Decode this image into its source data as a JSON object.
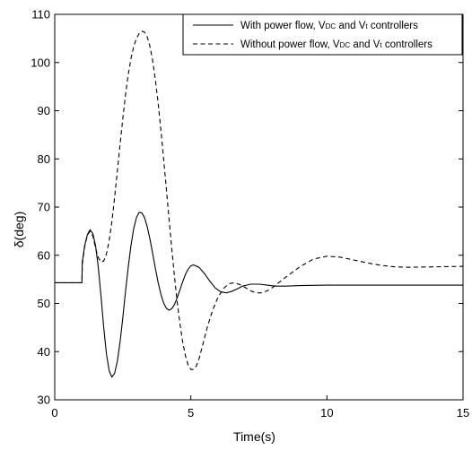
{
  "chart_data": {
    "type": "line",
    "xlabel": "Time(s)",
    "ylabel": "δ(deg)",
    "xlim": [
      0,
      15
    ],
    "ylim": [
      30,
      110
    ],
    "xticks": [
      0,
      5,
      10,
      15
    ],
    "yticks": [
      30,
      40,
      50,
      60,
      70,
      80,
      90,
      100,
      110
    ],
    "grid": false,
    "legend_position": "top-right",
    "series": [
      {
        "name": "With power flow, V_DC and V_t controllers",
        "legend": {
          "before": "With power flow, V",
          "sub1": "DC",
          "middle": " and V",
          "sub2": "t",
          "after": " controllers"
        },
        "line_style": "solid",
        "color": "#000000",
        "points": [
          [
            0,
            54.3
          ],
          [
            1.0,
            54.3
          ],
          [
            1.01,
            58.5
          ],
          [
            1.1,
            62.0
          ],
          [
            1.2,
            64.3
          ],
          [
            1.3,
            65.3
          ],
          [
            1.4,
            64.5
          ],
          [
            1.5,
            62.0
          ],
          [
            1.6,
            57.5
          ],
          [
            1.7,
            51.5
          ],
          [
            1.8,
            45.0
          ],
          [
            1.9,
            39.5
          ],
          [
            2.0,
            36.0
          ],
          [
            2.1,
            34.7
          ],
          [
            2.2,
            35.5
          ],
          [
            2.3,
            38.0
          ],
          [
            2.4,
            42.0
          ],
          [
            2.5,
            47.0
          ],
          [
            2.6,
            52.5
          ],
          [
            2.7,
            57.5
          ],
          [
            2.8,
            62.0
          ],
          [
            2.9,
            65.5
          ],
          [
            3.0,
            67.8
          ],
          [
            3.1,
            68.9
          ],
          [
            3.2,
            68.8
          ],
          [
            3.3,
            67.8
          ],
          [
            3.4,
            65.9
          ],
          [
            3.5,
            63.3
          ],
          [
            3.6,
            60.3
          ],
          [
            3.7,
            57.2
          ],
          [
            3.8,
            54.3
          ],
          [
            3.9,
            51.9
          ],
          [
            4.0,
            50.1
          ],
          [
            4.1,
            49.0
          ],
          [
            4.2,
            48.6
          ],
          [
            4.3,
            48.9
          ],
          [
            4.4,
            49.8
          ],
          [
            4.5,
            51.2
          ],
          [
            4.6,
            52.8
          ],
          [
            4.7,
            54.5
          ],
          [
            4.8,
            56.0
          ],
          [
            4.9,
            57.1
          ],
          [
            5.0,
            57.8
          ],
          [
            5.1,
            58.0
          ],
          [
            5.3,
            57.5
          ],
          [
            5.5,
            56.2
          ],
          [
            5.7,
            54.6
          ],
          [
            5.9,
            53.2
          ],
          [
            6.1,
            52.4
          ],
          [
            6.3,
            52.2
          ],
          [
            6.5,
            52.5
          ],
          [
            6.7,
            53.0
          ],
          [
            6.9,
            53.6
          ],
          [
            7.2,
            54.0
          ],
          [
            7.5,
            54.0
          ],
          [
            7.8,
            53.8
          ],
          [
            8.1,
            53.6
          ],
          [
            8.5,
            53.6
          ],
          [
            9.0,
            53.7
          ],
          [
            10.0,
            53.8
          ],
          [
            15.0,
            53.8
          ]
        ]
      },
      {
        "name": "Without power flow, V_DC and V_t controllers",
        "legend": {
          "before": "Without power flow, V",
          "sub1": "DC",
          "middle": " and V",
          "sub2": "t",
          "after": " controllers"
        },
        "line_style": "dashed",
        "color": "#000000",
        "points": [
          [
            0,
            54.3
          ],
          [
            1.0,
            54.3
          ],
          [
            1.01,
            58.0
          ],
          [
            1.1,
            61.8
          ],
          [
            1.2,
            64.2
          ],
          [
            1.3,
            65.0
          ],
          [
            1.4,
            64.0
          ],
          [
            1.5,
            61.5
          ],
          [
            1.6,
            59.5
          ],
          [
            1.7,
            58.6
          ],
          [
            1.8,
            58.8
          ],
          [
            1.9,
            60.3
          ],
          [
            2.0,
            63.0
          ],
          [
            2.1,
            67.0
          ],
          [
            2.2,
            72.0
          ],
          [
            2.3,
            77.5
          ],
          [
            2.4,
            83.0
          ],
          [
            2.5,
            88.3
          ],
          [
            2.6,
            93.3
          ],
          [
            2.7,
            97.5
          ],
          [
            2.8,
            100.8
          ],
          [
            2.9,
            103.3
          ],
          [
            3.0,
            105.0
          ],
          [
            3.1,
            106.0
          ],
          [
            3.2,
            106.5
          ],
          [
            3.3,
            106.3
          ],
          [
            3.4,
            105.3
          ],
          [
            3.5,
            103.3
          ],
          [
            3.6,
            100.3
          ],
          [
            3.7,
            96.3
          ],
          [
            3.8,
            91.5
          ],
          [
            3.9,
            86.0
          ],
          [
            4.0,
            80.0
          ],
          [
            4.1,
            73.8
          ],
          [
            4.2,
            67.5
          ],
          [
            4.3,
            61.3
          ],
          [
            4.4,
            55.5
          ],
          [
            4.5,
            50.3
          ],
          [
            4.6,
            45.8
          ],
          [
            4.7,
            42.0
          ],
          [
            4.8,
            39.2
          ],
          [
            4.9,
            37.2
          ],
          [
            5.0,
            36.3
          ],
          [
            5.1,
            36.3
          ],
          [
            5.2,
            37.0
          ],
          [
            5.3,
            38.5
          ],
          [
            5.4,
            40.6
          ],
          [
            5.6,
            45.0
          ],
          [
            5.8,
            48.6
          ],
          [
            6.0,
            51.3
          ],
          [
            6.2,
            53.1
          ],
          [
            6.4,
            54.1
          ],
          [
            6.6,
            54.3
          ],
          [
            6.8,
            53.9
          ],
          [
            7.0,
            53.3
          ],
          [
            7.2,
            52.6
          ],
          [
            7.4,
            52.2
          ],
          [
            7.6,
            52.2
          ],
          [
            7.8,
            52.6
          ],
          [
            8.0,
            53.3
          ],
          [
            8.5,
            55.5
          ],
          [
            9.0,
            57.6
          ],
          [
            9.5,
            59.2
          ],
          [
            10.0,
            59.8
          ],
          [
            10.5,
            59.6
          ],
          [
            11.0,
            59.0
          ],
          [
            11.5,
            58.4
          ],
          [
            12.0,
            57.9
          ],
          [
            12.5,
            57.6
          ],
          [
            13.0,
            57.5
          ],
          [
            14.0,
            57.6
          ],
          [
            15.0,
            57.7
          ]
        ]
      }
    ]
  }
}
